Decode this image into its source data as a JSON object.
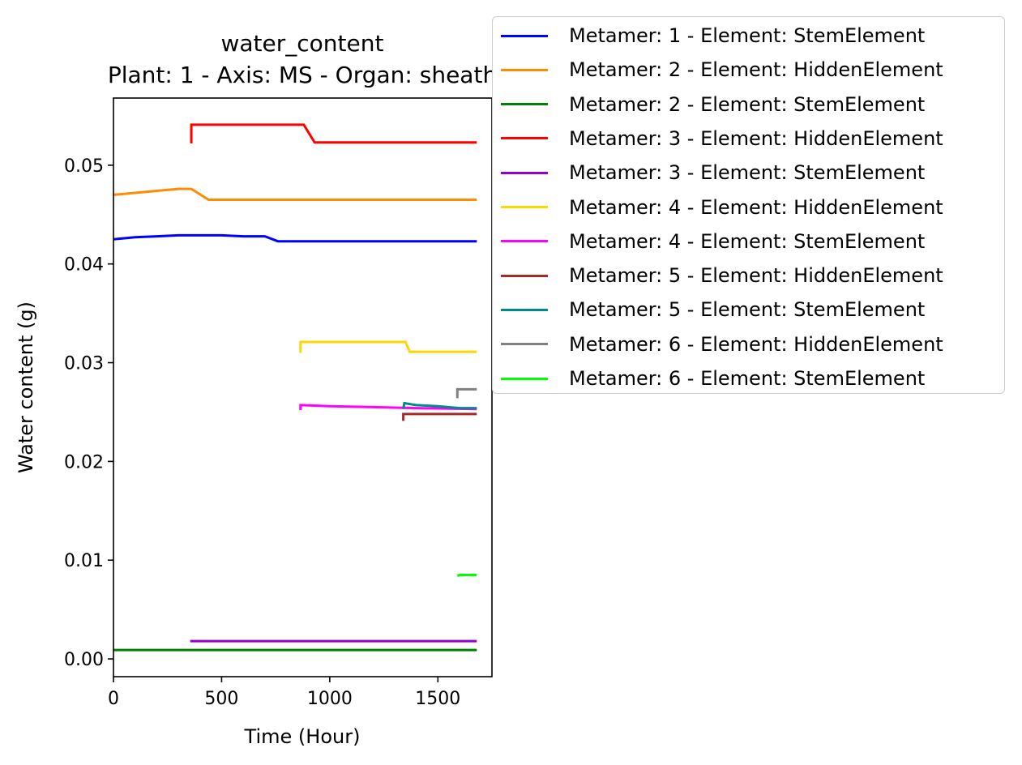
{
  "chart_data": {
    "type": "line",
    "title": "water_content",
    "subtitle": "Plant: 1 - Axis: MS - Organ: sheath",
    "xlabel": "Time (Hour)",
    "ylabel": "Water content (g)",
    "xlim": [
      0,
      1750
    ],
    "ylim": [
      -0.0018,
      0.0568
    ],
    "xticks": [
      0,
      500,
      1000,
      1500
    ],
    "yticks": [
      0.0,
      0.01,
      0.02,
      0.03,
      0.04,
      0.05
    ],
    "xtick_labels": [
      "0",
      "500",
      "1000",
      "1500"
    ],
    "ytick_labels": [
      "0.00",
      "0.01",
      "0.02",
      "0.03",
      "0.04",
      "0.05"
    ],
    "grid": false,
    "legend_position": "outside-top-right",
    "series": [
      {
        "name": "Metamer: 1 - Element: StemElement",
        "color": "#0000ff",
        "x": [
          0,
          100,
          200,
          300,
          400,
          500,
          600,
          700,
          760,
          1000,
          1680
        ],
        "y": [
          0.0425,
          0.0427,
          0.0428,
          0.0429,
          0.0429,
          0.0429,
          0.0428,
          0.0428,
          0.0423,
          0.0423,
          0.0423
        ]
      },
      {
        "name": "Metamer: 2 - Element: HiddenElement",
        "color": "#ff8c00",
        "x": [
          0,
          100,
          200,
          300,
          360,
          440,
          800,
          1680
        ],
        "y": [
          0.047,
          0.0472,
          0.0474,
          0.0476,
          0.0476,
          0.0465,
          0.0465,
          0.0465
        ]
      },
      {
        "name": "Metamer: 2 - Element: StemElement",
        "color": "#008000",
        "x": [
          0,
          1680
        ],
        "y": [
          0.0009,
          0.0009
        ]
      },
      {
        "name": "Metamer: 3 - Element: HiddenElement",
        "color": "#ff0000",
        "x": [
          360,
          360,
          880,
          930,
          1680
        ],
        "y": [
          0.0522,
          0.0541,
          0.0541,
          0.0523,
          0.0523
        ]
      },
      {
        "name": "Metamer: 3 - Element: StemElement",
        "color": "#9400d3",
        "x": [
          355,
          1680
        ],
        "y": [
          0.0018,
          0.0018
        ]
      },
      {
        "name": "Metamer: 4 - Element: HiddenElement",
        "color": "#ffd700",
        "x": [
          865,
          865,
          1350,
          1370,
          1680
        ],
        "y": [
          0.031,
          0.0321,
          0.0321,
          0.0311,
          0.0311
        ]
      },
      {
        "name": "Metamer: 4 - Element: StemElement",
        "color": "#ff00ff",
        "x": [
          865,
          865,
          1000,
          1200,
          1400,
          1680
        ],
        "y": [
          0.0252,
          0.0257,
          0.0256,
          0.0255,
          0.0254,
          0.0253
        ]
      },
      {
        "name": "Metamer: 5 - Element: HiddenElement",
        "color": "#a52a2a",
        "x": [
          1340,
          1340,
          1680
        ],
        "y": [
          0.0241,
          0.0248,
          0.0248
        ]
      },
      {
        "name": "Metamer: 5 - Element: StemElement",
        "color": "#008b8b",
        "x": [
          1340,
          1345,
          1400,
          1500,
          1600,
          1680
        ],
        "y": [
          0.0253,
          0.0259,
          0.0257,
          0.0256,
          0.0254,
          0.0254
        ]
      },
      {
        "name": "Metamer: 6 - Element: HiddenElement",
        "color": "#808080",
        "x": [
          1590,
          1590,
          1680
        ],
        "y": [
          0.0264,
          0.0273,
          0.0273
        ]
      },
      {
        "name": "Metamer: 6 - Element: StemElement",
        "color": "#00ff00",
        "x": [
          1590,
          1600,
          1650,
          1680
        ],
        "y": [
          0.0084,
          0.0085,
          0.0085,
          0.0085
        ]
      }
    ]
  }
}
